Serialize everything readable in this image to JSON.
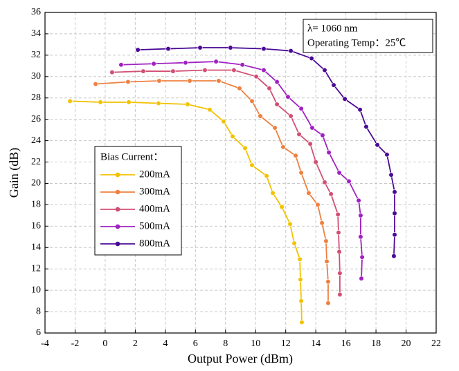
{
  "chart_data": {
    "type": "line",
    "x_label": "Output Power (dBm)",
    "y_label": "Gain (dB)",
    "xlim": [
      -4,
      22
    ],
    "xticks": [
      -4,
      -2,
      0,
      2,
      4,
      6,
      8,
      10,
      12,
      14,
      16,
      18,
      20,
      22
    ],
    "ylim": [
      6,
      36
    ],
    "yticks": [
      6,
      8,
      10,
      12,
      14,
      16,
      18,
      20,
      22,
      24,
      26,
      28,
      30,
      32,
      34,
      36
    ],
    "grid": true,
    "annotations": [
      "λ= 1060 nm",
      "Operating Temp：25℃"
    ],
    "legend_title": "Bias Current：",
    "series": [
      {
        "name": "200mA",
        "color": "#f2c200",
        "x": [
          -2.34,
          -0.32,
          1.57,
          3.55,
          5.48,
          6.95,
          7.87,
          8.47,
          9.3,
          9.76,
          10.73,
          11.14,
          11.74,
          12.29,
          12.57,
          12.94,
          12.98,
          13.03,
          13.07
        ],
        "values": [
          27.7,
          27.6,
          27.6,
          27.5,
          27.4,
          26.9,
          25.8,
          24.4,
          23.3,
          21.7,
          20.7,
          19.1,
          17.8,
          16.2,
          14.4,
          12.9,
          11.0,
          9.0,
          7.0
        ]
      },
      {
        "name": "300mA",
        "color": "#ee8040",
        "x": [
          -0.64,
          1.52,
          3.59,
          5.62,
          7.55,
          8.93,
          9.76,
          10.31,
          11.28,
          11.83,
          12.66,
          13.03,
          13.53,
          14.13,
          14.41,
          14.68,
          14.73,
          14.82,
          14.82
        ],
        "values": [
          29.3,
          29.5,
          29.6,
          29.6,
          29.6,
          28.9,
          27.7,
          26.3,
          25.2,
          23.4,
          22.6,
          21.0,
          19.1,
          18.0,
          16.3,
          14.6,
          12.7,
          10.8,
          8.8
        ]
      },
      {
        "name": "400mA",
        "color": "#d24f74",
        "x": [
          0.46,
          2.53,
          4.51,
          6.63,
          8.56,
          10.04,
          10.91,
          11.42,
          12.34,
          12.89,
          13.63,
          14.0,
          14.59,
          15.01,
          15.47,
          15.51,
          15.56,
          15.6,
          15.6
        ],
        "values": [
          30.4,
          30.5,
          30.5,
          30.6,
          30.6,
          30.0,
          28.9,
          27.4,
          26.3,
          24.6,
          23.7,
          22.0,
          20.1,
          19.0,
          17.1,
          15.4,
          13.6,
          11.6,
          9.6
        ]
      },
      {
        "name": "500mA",
        "color": "#a021c2",
        "x": [
          1.06,
          3.23,
          5.34,
          7.37,
          9.12,
          10.54,
          11.42,
          12.15,
          13.03,
          13.76,
          14.45,
          14.87,
          15.56,
          16.2,
          16.85,
          16.98,
          16.98,
          17.08,
          17.03
        ],
        "values": [
          31.1,
          31.2,
          31.3,
          31.4,
          31.1,
          30.6,
          29.5,
          28.1,
          27.0,
          25.2,
          24.5,
          22.9,
          21.0,
          20.2,
          18.4,
          17.0,
          15.0,
          13.1,
          11.1
        ]
      },
      {
        "name": "800mA",
        "color": "#4a0a96",
        "x": [
          2.17,
          4.19,
          6.31,
          8.33,
          10.54,
          12.34,
          13.72,
          14.59,
          15.19,
          15.93,
          16.94,
          17.35,
          18.09,
          18.73,
          19.01,
          19.24,
          19.24,
          19.24,
          19.19
        ],
        "values": [
          32.5,
          32.6,
          32.7,
          32.7,
          32.6,
          32.4,
          31.7,
          30.6,
          29.2,
          27.9,
          26.9,
          25.3,
          23.6,
          22.7,
          20.8,
          19.2,
          17.2,
          15.2,
          13.2
        ]
      }
    ]
  }
}
